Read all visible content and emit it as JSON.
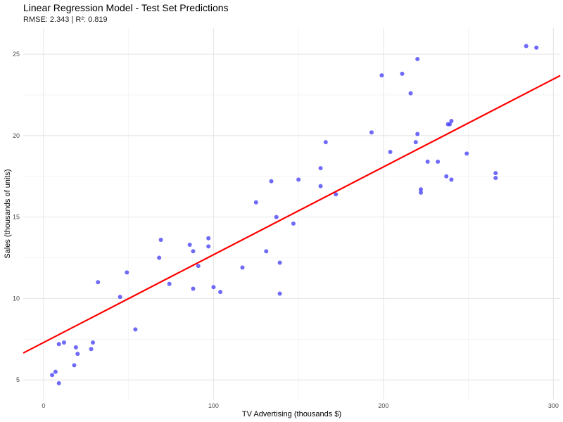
{
  "chart_data": {
    "type": "scatter",
    "title": "Linear Regression Model - Test Set Predictions",
    "subtitle": "RMSE: 2.343 | R²: 0.819",
    "xlabel": "TV Advertising (thousands $)",
    "ylabel": "Sales (thousands of units)",
    "xlim": [
      -12,
      304
    ],
    "ylim": [
      3.8,
      26.6
    ],
    "x_ticks": [
      0,
      100,
      200,
      300
    ],
    "y_ticks": [
      5,
      10,
      15,
      20,
      25
    ],
    "grid": true,
    "legend": "none",
    "point_color": "#4b45f5",
    "line_color": "#ff0000",
    "regression_line": {
      "intercept": 7.3,
      "slope": 0.0539
    },
    "points": [
      {
        "x": 5,
        "y": 5.3
      },
      {
        "x": 7,
        "y": 5.5
      },
      {
        "x": 9,
        "y": 4.8
      },
      {
        "x": 9,
        "y": 7.2
      },
      {
        "x": 12,
        "y": 7.3
      },
      {
        "x": 18,
        "y": 5.9
      },
      {
        "x": 19,
        "y": 7.0
      },
      {
        "x": 20,
        "y": 6.6
      },
      {
        "x": 28,
        "y": 6.9
      },
      {
        "x": 29,
        "y": 7.3
      },
      {
        "x": 32,
        "y": 11.0
      },
      {
        "x": 45,
        "y": 10.1
      },
      {
        "x": 49,
        "y": 11.6
      },
      {
        "x": 54,
        "y": 8.1
      },
      {
        "x": 68,
        "y": 12.5
      },
      {
        "x": 69,
        "y": 13.6
      },
      {
        "x": 74,
        "y": 10.9
      },
      {
        "x": 86,
        "y": 13.3
      },
      {
        "x": 88,
        "y": 10.6
      },
      {
        "x": 88,
        "y": 12.9
      },
      {
        "x": 91,
        "y": 12.0
      },
      {
        "x": 97,
        "y": 13.7
      },
      {
        "x": 97,
        "y": 13.2
      },
      {
        "x": 100,
        "y": 10.7
      },
      {
        "x": 104,
        "y": 10.4
      },
      {
        "x": 117,
        "y": 11.9
      },
      {
        "x": 125,
        "y": 15.9
      },
      {
        "x": 131,
        "y": 12.9
      },
      {
        "x": 134,
        "y": 17.2
      },
      {
        "x": 137,
        "y": 15.0
      },
      {
        "x": 139,
        "y": 12.2
      },
      {
        "x": 139,
        "y": 10.3
      },
      {
        "x": 147,
        "y": 14.6
      },
      {
        "x": 150,
        "y": 17.3
      },
      {
        "x": 163,
        "y": 18.0
      },
      {
        "x": 163,
        "y": 16.9
      },
      {
        "x": 166,
        "y": 19.6
      },
      {
        "x": 172,
        "y": 16.4
      },
      {
        "x": 193,
        "y": 20.2
      },
      {
        "x": 199,
        "y": 23.7
      },
      {
        "x": 204,
        "y": 19.0
      },
      {
        "x": 211,
        "y": 23.8
      },
      {
        "x": 216,
        "y": 22.6
      },
      {
        "x": 220,
        "y": 24.7
      },
      {
        "x": 220,
        "y": 20.1
      },
      {
        "x": 219,
        "y": 19.6
      },
      {
        "x": 222,
        "y": 16.7
      },
      {
        "x": 222,
        "y": 16.5
      },
      {
        "x": 226,
        "y": 18.4
      },
      {
        "x": 232,
        "y": 18.4
      },
      {
        "x": 237,
        "y": 17.5
      },
      {
        "x": 238,
        "y": 20.7
      },
      {
        "x": 239,
        "y": 20.7
      },
      {
        "x": 240,
        "y": 20.9
      },
      {
        "x": 240,
        "y": 17.3
      },
      {
        "x": 249,
        "y": 18.9
      },
      {
        "x": 266,
        "y": 17.7
      },
      {
        "x": 266,
        "y": 17.4
      },
      {
        "x": 284,
        "y": 25.5
      },
      {
        "x": 290,
        "y": 25.4
      }
    ]
  }
}
